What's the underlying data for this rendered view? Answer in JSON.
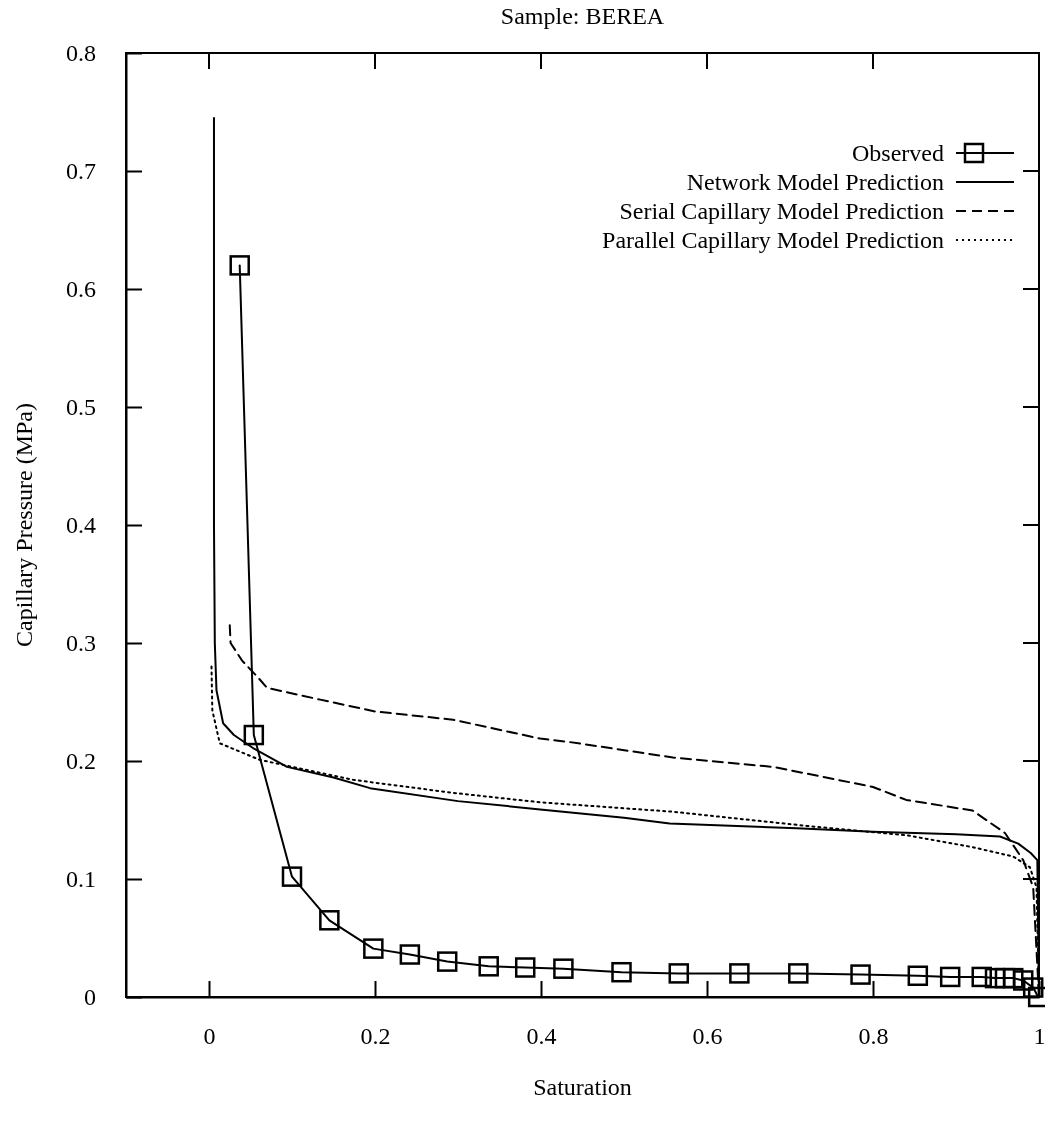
{
  "chart_data": {
    "type": "line",
    "title": "Sample: BEREA",
    "xlabel": "Saturation",
    "ylabel": "Capillary Pressure (MPa)",
    "xlim": [
      -0.1,
      1
    ],
    "xticks": [
      0,
      0.2,
      0.4,
      0.6,
      0.8,
      1
    ],
    "ylim": [
      0,
      0.8
    ],
    "yticks": [
      0,
      0.1,
      0.2,
      0.3,
      0.4,
      0.5,
      0.6,
      0.7,
      0.8
    ],
    "grid": false,
    "legend": "top right",
    "series": [
      {
        "name": "Observed",
        "color": "#000000",
        "marker": "square",
        "line_style": "solid",
        "x": [
          0.037,
          0.054,
          0.1,
          0.145,
          0.198,
          0.242,
          0.287,
          0.337,
          0.381,
          0.427,
          0.497,
          0.566,
          0.639,
          0.71,
          0.785,
          0.854,
          0.893,
          0.931,
          0.947,
          0.959,
          0.969,
          0.981,
          0.993,
          0.999
        ],
        "values": [
          0.62,
          0.222,
          0.102,
          0.065,
          0.041,
          0.036,
          0.03,
          0.026,
          0.025,
          0.024,
          0.021,
          0.02,
          0.02,
          0.02,
          0.019,
          0.018,
          0.017,
          0.017,
          0.016,
          0.016,
          0.016,
          0.014,
          0.008,
          0
        ]
      },
      {
        "name": "Network Model Prediction",
        "color": "#000000",
        "marker": "none",
        "line_style": "solid",
        "x": [
          0.006,
          0.006,
          0.007,
          0.009,
          0.017,
          0.03,
          0.053,
          0.094,
          0.15,
          0.194,
          0.3,
          0.399,
          0.5,
          0.555,
          0.708,
          0.8,
          0.9,
          0.953,
          0.975,
          0.99,
          0.998,
          1
        ],
        "values": [
          0.745,
          0.4,
          0.3,
          0.26,
          0.232,
          0.222,
          0.211,
          0.195,
          0.186,
          0.177,
          0.166,
          0.159,
          0.152,
          0.147,
          0.143,
          0.14,
          0.138,
          0.136,
          0.13,
          0.122,
          0.116,
          0
        ]
      },
      {
        "name": "Serial Capillary Model Prediction",
        "color": "#000000",
        "marker": "none",
        "line_style": "dashed",
        "x": [
          0.025,
          0.026,
          0.04,
          0.06,
          0.07,
          0.134,
          0.2,
          0.294,
          0.399,
          0.435,
          0.559,
          0.68,
          0.8,
          0.84,
          0.92,
          0.959,
          0.981,
          0.993,
          1
        ],
        "values": [
          0.315,
          0.3,
          0.285,
          0.27,
          0.262,
          0.252,
          0.242,
          0.235,
          0.219,
          0.216,
          0.203,
          0.195,
          0.178,
          0.167,
          0.158,
          0.139,
          0.116,
          0.093,
          0
        ]
      },
      {
        "name": "Parallel Capillary Model Prediction",
        "color": "#000000",
        "marker": "none",
        "line_style": "dotted",
        "x": [
          0.003,
          0.004,
          0.013,
          0.061,
          0.174,
          0.294,
          0.399,
          0.559,
          0.72,
          0.841,
          0.92,
          0.969,
          0.989,
          0.997,
          1
        ],
        "values": [
          0.28,
          0.243,
          0.215,
          0.201,
          0.184,
          0.173,
          0.165,
          0.157,
          0.145,
          0.137,
          0.127,
          0.119,
          0.11,
          0.093,
          0
        ]
      }
    ]
  }
}
